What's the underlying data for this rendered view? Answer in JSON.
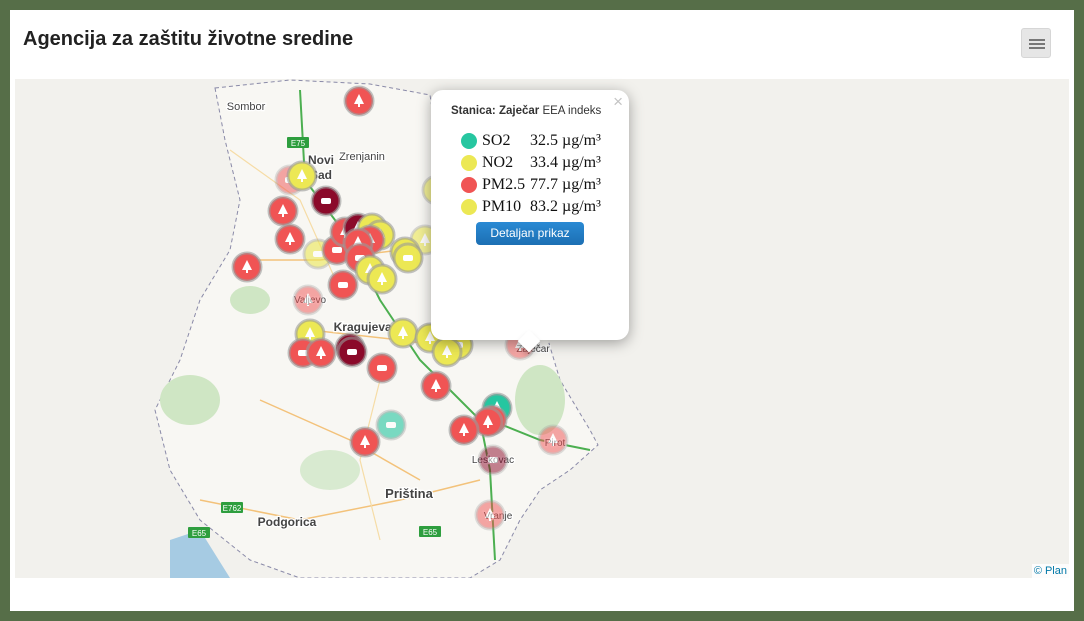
{
  "header": {
    "title": "Agencija za zaštitu životne sredine"
  },
  "map": {
    "labels": [
      "Sombor",
      "Novi",
      "Sad",
      "Zrenjanin",
      "Valjevo",
      "Kragujevac",
      "Zaječar",
      "Pirot",
      "Leskovac",
      "Vranje",
      "Priština",
      "Podgorica"
    ],
    "road_labels": [
      "E75",
      "E762",
      "E65",
      "E65"
    ],
    "attribution": "© Plan"
  },
  "popup": {
    "close": "×",
    "station_label": "Stanica:",
    "station": "Zaječar",
    "index": "EEA indeks",
    "rows": [
      {
        "name": "SO2",
        "value": "32.5 µg/m³",
        "color": "#26c6a0"
      },
      {
        "name": "NO2",
        "value": "33.4 µg/m³",
        "color": "#ece854"
      },
      {
        "name": "PM2.5",
        "value": "77.7 µg/m³",
        "color": "#f05454"
      },
      {
        "name": "PM10",
        "value": "83.2 µg/m³",
        "color": "#ece854"
      }
    ],
    "button": "Detaljan prikaz"
  }
}
